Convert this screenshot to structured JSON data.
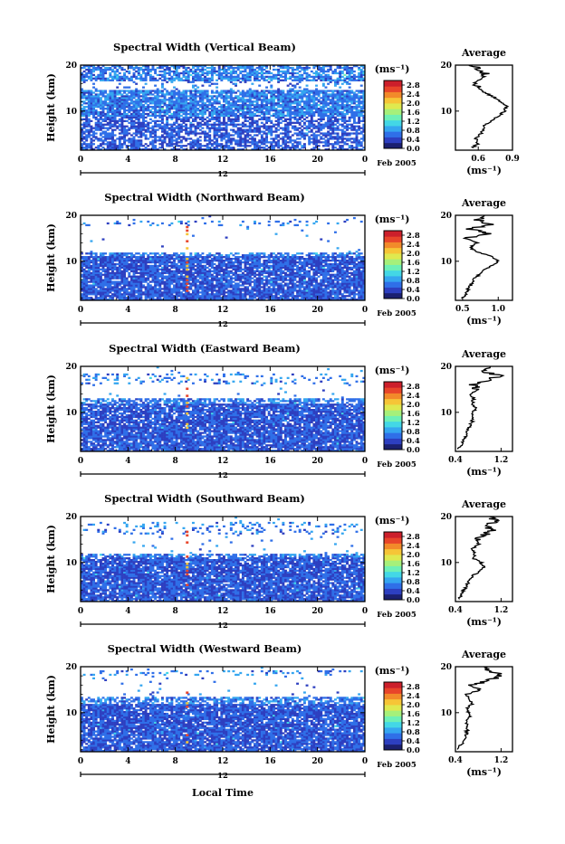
{
  "figure": {
    "x_axis_label": "Local Time",
    "date_label": "12",
    "month_label": "Feb 2005",
    "y_axis_label": "Height (km)",
    "colorbar_unit": "(ms⁻¹)",
    "average_title": "Average",
    "average_unit": "(ms⁻¹)"
  },
  "colorscale": {
    "ticks": [
      "2.8",
      "2.4",
      "2.0",
      "1.6",
      "1.2",
      "0.8",
      "0.4",
      "0.0"
    ],
    "colors": [
      "#1b2070",
      "#2d3fc0",
      "#2f6fe8",
      "#35a6f0",
      "#43d7e6",
      "#6ef0b6",
      "#a6f07a",
      "#dfe94f",
      "#f6c537",
      "#f28a2a",
      "#e8452a",
      "#cc1f2b"
    ]
  },
  "chart_data": [
    {
      "type": "heatmap",
      "title": "Spectral Width (Vertical Beam)",
      "beam": "vertical",
      "x_range": [
        0,
        24
      ],
      "x_ticks": [
        "0",
        "4",
        "8",
        "12",
        "16",
        "20",
        "0"
      ],
      "y_range": [
        1.5,
        20
      ],
      "y_ticks": [
        10,
        20
      ],
      "colorbar_range": [
        0,
        3.0
      ],
      "average": {
        "title": "Average",
        "x_range": [
          0.4,
          0.9
        ],
        "x_ticks": [
          "0.6",
          "0.9"
        ],
        "y_ticks": [
          10,
          20
        ],
        "profile": [
          [
            0.55,
            2
          ],
          [
            0.6,
            3
          ],
          [
            0.58,
            4
          ],
          [
            0.62,
            5
          ],
          [
            0.64,
            6
          ],
          [
            0.66,
            7
          ],
          [
            0.72,
            8
          ],
          [
            0.78,
            9
          ],
          [
            0.83,
            10
          ],
          [
            0.85,
            11
          ],
          [
            0.8,
            12
          ],
          [
            0.74,
            13
          ],
          [
            0.66,
            14
          ],
          [
            0.6,
            15
          ],
          [
            0.56,
            16
          ],
          [
            0.6,
            17
          ],
          [
            0.66,
            18
          ],
          [
            0.62,
            19
          ],
          [
            0.55,
            20
          ]
        ]
      }
    },
    {
      "type": "heatmap",
      "title": "Spectral Width (Northward Beam)",
      "beam": "north",
      "x_range": [
        0,
        24
      ],
      "x_ticks": [
        "0",
        "4",
        "8",
        "12",
        "16",
        "20",
        "0"
      ],
      "y_range": [
        1.5,
        20
      ],
      "y_ticks": [
        10,
        20
      ],
      "colorbar_range": [
        0,
        3.0
      ],
      "average": {
        "title": "Average",
        "x_range": [
          0.4,
          1.2
        ],
        "x_ticks": [
          "0.5",
          "1.0"
        ],
        "y_ticks": [
          10,
          20
        ],
        "profile": [
          [
            0.5,
            2
          ],
          [
            0.55,
            3
          ],
          [
            0.58,
            4
          ],
          [
            0.62,
            5
          ],
          [
            0.66,
            6
          ],
          [
            0.72,
            7
          ],
          [
            0.8,
            8
          ],
          [
            0.9,
            9
          ],
          [
            1.0,
            10
          ],
          [
            0.92,
            11
          ],
          [
            0.7,
            12
          ],
          [
            0.6,
            13
          ],
          [
            0.7,
            14
          ],
          [
            0.55,
            15
          ],
          [
            0.85,
            16
          ],
          [
            0.6,
            17
          ],
          [
            0.9,
            18
          ],
          [
            0.7,
            19
          ],
          [
            0.8,
            20
          ]
        ]
      }
    },
    {
      "type": "heatmap",
      "title": "Spectral Width (Eastward Beam)",
      "beam": "east",
      "x_range": [
        0,
        24
      ],
      "x_ticks": [
        "0",
        "4",
        "8",
        "12",
        "16",
        "20",
        "0"
      ],
      "y_range": [
        1.5,
        20
      ],
      "y_ticks": [
        10,
        20
      ],
      "colorbar_range": [
        0,
        3.0
      ],
      "average": {
        "title": "Average",
        "x_range": [
          0.4,
          1.4
        ],
        "x_ticks": [
          "0.4",
          "1.2"
        ],
        "y_ticks": [
          10,
          20
        ],
        "profile": [
          [
            0.45,
            2
          ],
          [
            0.5,
            3
          ],
          [
            0.55,
            4
          ],
          [
            0.6,
            5
          ],
          [
            0.62,
            6
          ],
          [
            0.65,
            7
          ],
          [
            0.7,
            8
          ],
          [
            0.68,
            9
          ],
          [
            0.72,
            10
          ],
          [
            0.75,
            11
          ],
          [
            0.7,
            12
          ],
          [
            0.72,
            13
          ],
          [
            0.65,
            14
          ],
          [
            0.8,
            15
          ],
          [
            0.7,
            16
          ],
          [
            1.0,
            17
          ],
          [
            1.15,
            18
          ],
          [
            0.9,
            19
          ],
          [
            1.0,
            20
          ]
        ]
      }
    },
    {
      "type": "heatmap",
      "title": "Spectral Width (Southward Beam)",
      "beam": "south",
      "x_range": [
        0,
        24
      ],
      "x_ticks": [
        "0",
        "4",
        "8",
        "12",
        "16",
        "20",
        "0"
      ],
      "y_range": [
        1.5,
        20
      ],
      "y_ticks": [
        10,
        20
      ],
      "colorbar_range": [
        0,
        3.0
      ],
      "average": {
        "title": "Average",
        "x_range": [
          0.4,
          1.4
        ],
        "x_ticks": [
          "0.4",
          "1.2"
        ],
        "y_ticks": [
          10,
          20
        ],
        "profile": [
          [
            0.45,
            2
          ],
          [
            0.5,
            3
          ],
          [
            0.55,
            4
          ],
          [
            0.6,
            5
          ],
          [
            0.65,
            6
          ],
          [
            0.7,
            7
          ],
          [
            0.8,
            8
          ],
          [
            0.9,
            9
          ],
          [
            0.85,
            10
          ],
          [
            0.7,
            11
          ],
          [
            0.75,
            12
          ],
          [
            0.7,
            13
          ],
          [
            0.8,
            14
          ],
          [
            0.75,
            15
          ],
          [
            0.9,
            16
          ],
          [
            1.05,
            17
          ],
          [
            0.9,
            18
          ],
          [
            1.1,
            19
          ],
          [
            1.0,
            20
          ]
        ]
      }
    },
    {
      "type": "heatmap",
      "title": "Spectral Width (Westward Beam)",
      "beam": "west",
      "x_range": [
        0,
        24
      ],
      "x_ticks": [
        "0",
        "4",
        "8",
        "12",
        "16",
        "20",
        "0"
      ],
      "y_range": [
        1.5,
        20
      ],
      "y_ticks": [
        10,
        20
      ],
      "colorbar_range": [
        0,
        3.0
      ],
      "average": {
        "title": "Average",
        "x_range": [
          0.4,
          1.4
        ],
        "x_ticks": [
          "0.4",
          "1.2"
        ],
        "y_ticks": [
          10,
          20
        ],
        "profile": [
          [
            0.45,
            2
          ],
          [
            0.5,
            3
          ],
          [
            0.55,
            4
          ],
          [
            0.58,
            5
          ],
          [
            0.6,
            6
          ],
          [
            0.62,
            7
          ],
          [
            0.6,
            8
          ],
          [
            0.65,
            9
          ],
          [
            0.62,
            10
          ],
          [
            0.6,
            11
          ],
          [
            0.7,
            12
          ],
          [
            0.65,
            13
          ],
          [
            0.6,
            14
          ],
          [
            0.85,
            15
          ],
          [
            0.7,
            16
          ],
          [
            1.0,
            17
          ],
          [
            1.2,
            18
          ],
          [
            1.05,
            19
          ],
          [
            0.9,
            20
          ]
        ]
      }
    }
  ]
}
